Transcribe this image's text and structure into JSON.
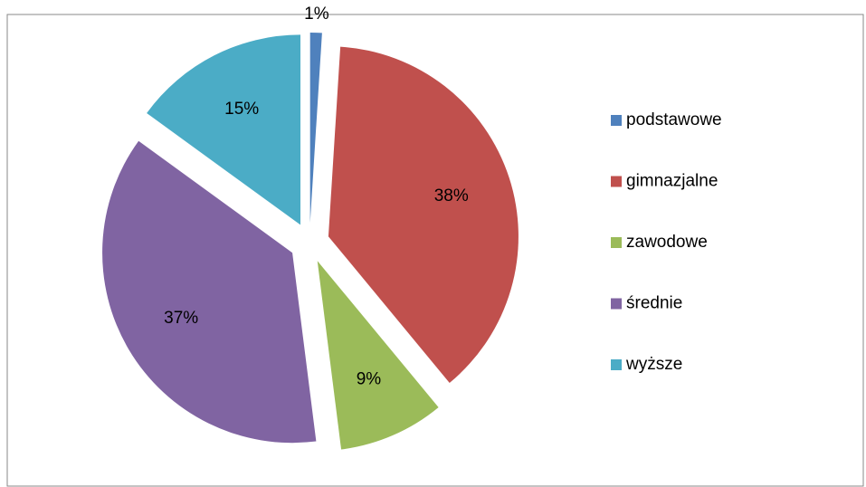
{
  "chart_data": {
    "type": "pie",
    "categories": [
      "podstawowe",
      "gimnazjalne",
      "zawodowe",
      "średnie",
      "wyższe"
    ],
    "values": [
      1,
      38,
      9,
      37,
      15
    ],
    "value_labels": [
      "1%",
      "38%",
      "9%",
      "37%",
      "15%"
    ],
    "colors": [
      "#4f81bd",
      "#c0504d",
      "#9bbb59",
      "#8064a2",
      "#4bacc6"
    ],
    "legend": "right"
  }
}
